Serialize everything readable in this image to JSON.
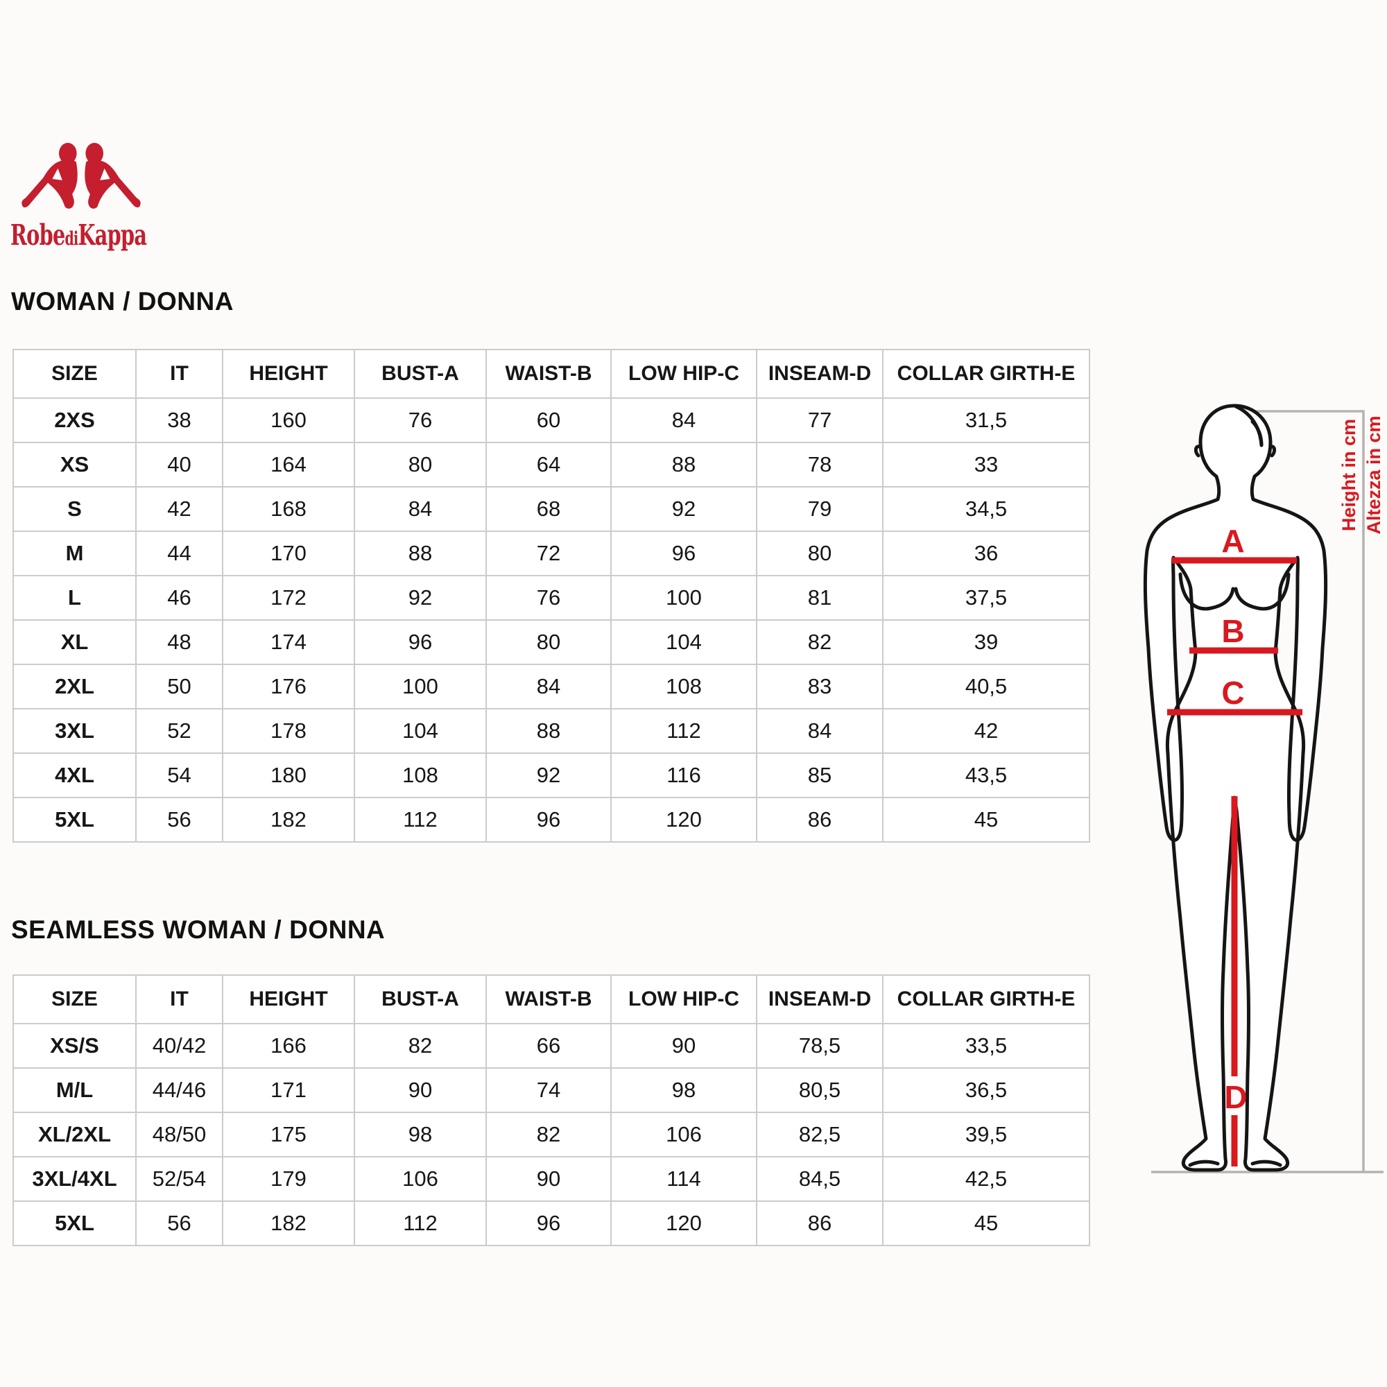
{
  "colors": {
    "brand_red": "#c41e2f",
    "diagram_red": "#d8191f",
    "bracket_gray": "#b5b3b1",
    "outline_black": "#151515"
  },
  "logo": {
    "word1": "Robe",
    "word2": "di",
    "word3": "Kappa"
  },
  "sections": [
    {
      "title": "WOMAN / DONNA",
      "table": {
        "headers": [
          "SIZE",
          "IT",
          "HEIGHT",
          "BUST-A",
          "WAIST-B",
          "LOW HIP-C",
          "INSEAM-D",
          "COLLAR GIRTH-E"
        ],
        "rows": [
          [
            "2XS",
            "38",
            "160",
            "76",
            "60",
            "84",
            "77",
            "31,5"
          ],
          [
            "XS",
            "40",
            "164",
            "80",
            "64",
            "88",
            "78",
            "33"
          ],
          [
            "S",
            "42",
            "168",
            "84",
            "68",
            "92",
            "79",
            "34,5"
          ],
          [
            "M",
            "44",
            "170",
            "88",
            "72",
            "96",
            "80",
            "36"
          ],
          [
            "L",
            "46",
            "172",
            "92",
            "76",
            "100",
            "81",
            "37,5"
          ],
          [
            "XL",
            "48",
            "174",
            "96",
            "80",
            "104",
            "82",
            "39"
          ],
          [
            "2XL",
            "50",
            "176",
            "100",
            "84",
            "108",
            "83",
            "40,5"
          ],
          [
            "3XL",
            "52",
            "178",
            "104",
            "88",
            "112",
            "84",
            "42"
          ],
          [
            "4XL",
            "54",
            "180",
            "108",
            "92",
            "116",
            "85",
            "43,5"
          ],
          [
            "5XL",
            "56",
            "182",
            "112",
            "96",
            "120",
            "86",
            "45"
          ]
        ]
      }
    },
    {
      "title": "SEAMLESS WOMAN / DONNA",
      "table": {
        "headers": [
          "SIZE",
          "IT",
          "HEIGHT",
          "BUST-A",
          "WAIST-B",
          "LOW HIP-C",
          "INSEAM-D",
          "COLLAR GIRTH-E"
        ],
        "rows": [
          [
            "XS/S",
            "40/42",
            "166",
            "82",
            "66",
            "90",
            "78,5",
            "33,5"
          ],
          [
            "M/L",
            "44/46",
            "171",
            "90",
            "74",
            "98",
            "80,5",
            "36,5"
          ],
          [
            "XL/2XL",
            "48/50",
            "175",
            "98",
            "82",
            "106",
            "82,5",
            "39,5"
          ],
          [
            "3XL/4XL",
            "52/54",
            "179",
            "106",
            "90",
            "114",
            "84,5",
            "42,5"
          ],
          [
            "5XL",
            "56",
            "182",
            "112",
            "96",
            "120",
            "86",
            "45"
          ]
        ]
      }
    }
  ],
  "diagram": {
    "height_label_en": "Height in cm",
    "height_label_it": "Altezza in cm",
    "markers": [
      "A",
      "B",
      "C",
      "D"
    ]
  }
}
